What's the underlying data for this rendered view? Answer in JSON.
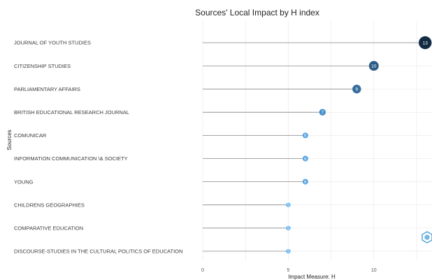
{
  "chart_data": {
    "type": "lollipop",
    "title": "Sources' Local Impact by H index",
    "xlabel": "Impact Measure: H",
    "ylabel": "Sources",
    "xlim": [
      0,
      13.4
    ],
    "x_ticks": [
      0,
      5,
      10
    ],
    "grid": true,
    "categories": [
      "JOURNAL OF YOUTH STUDIES",
      "CITIZENSHIP STUDIES",
      "PARLIAMENTARY AFFAIRS",
      "BRITISH EDUCATIONAL RESEARCH JOURNAL",
      "COMUNICAR",
      "INFORMATION COMMUNICATION \\& SOCIETY",
      "YOUNG",
      "CHILDRENS GEOGRAPHIES",
      "COMPARATIVE EDUCATION",
      "DISCOURSE-STUDIES IN THE CULTURAL POLITICS OF EDUCATION"
    ],
    "values": [
      13,
      10,
      9,
      7,
      6,
      6,
      6,
      5,
      5,
      5
    ],
    "color_scale": {
      "low": "#56B1F7",
      "high": "#132B43"
    }
  },
  "colors": {
    "background": "#ffffff",
    "grid": "#ebebeb",
    "stem": "#8a8a8a"
  },
  "watermark_icon": "bibliometrix-logo-icon"
}
